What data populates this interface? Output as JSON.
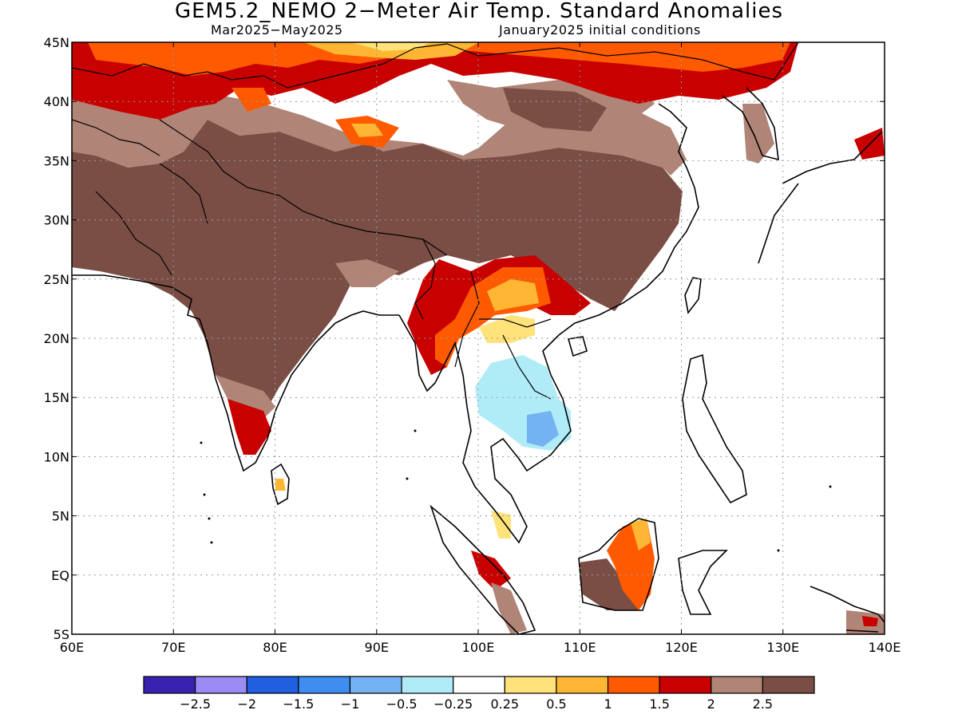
{
  "title": "GEM5.2_NEMO 2−Meter Air Temp. Standard Anomalies",
  "subtitle_left": "Mar2025−May2025",
  "subtitle_right": "January2025 initial conditions",
  "map": {
    "lon_range": [
      60,
      140
    ],
    "lat_range": [
      -5,
      45
    ],
    "lon_ticks": [
      "60E",
      "70E",
      "80E",
      "90E",
      "100E",
      "110E",
      "120E",
      "130E",
      "140E"
    ],
    "lat_ticks": [
      "5S",
      "EQ",
      "5N",
      "10N",
      "15N",
      "20N",
      "25N",
      "30N",
      "35N",
      "40N",
      "45N"
    ],
    "grid": true
  },
  "legend": {
    "colors": [
      "#3a22b0",
      "#9c8af5",
      "#1f5fe0",
      "#3d8ef0",
      "#74b3f2",
      "#b0ecf7",
      "#ffffff",
      "#ffe27a",
      "#ffb733",
      "#ff5a00",
      "#c80000",
      "#b08476",
      "#7a4e44"
    ],
    "labels": [
      "−2.5",
      "−2",
      "−1.5",
      "−1",
      "−0.5",
      "−0.25",
      "0.25",
      "0.5",
      "1",
      "1.5",
      "2",
      "2.5"
    ]
  }
}
